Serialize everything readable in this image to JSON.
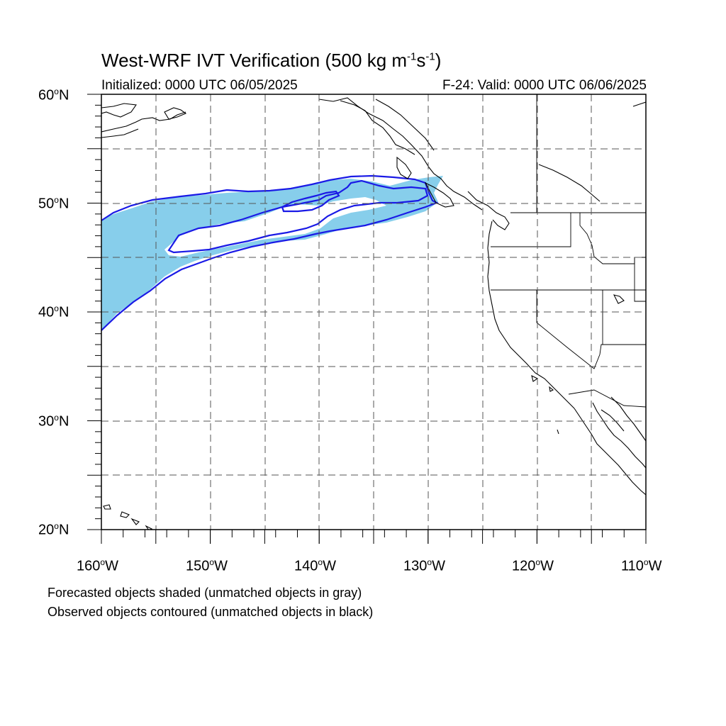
{
  "title": {
    "main": "West-WRF IVT Verification (500 kg m",
    "sup1": "-1",
    "mid": "s",
    "sup2": "-1",
    "end": ")"
  },
  "subtitle_left": "Initialized: 0000 UTC 06/05/2025",
  "subtitle_right": "F-24: Valid: 0000 UTC 06/06/2025",
  "lat_labels": [
    {
      "num": "60",
      "sup": "o",
      "hem": "N"
    },
    {
      "num": "50",
      "sup": "o",
      "hem": "N"
    },
    {
      "num": "40",
      "sup": "o",
      "hem": "N"
    },
    {
      "num": "30",
      "sup": "o",
      "hem": "N"
    },
    {
      "num": "20",
      "sup": "o",
      "hem": "N"
    }
  ],
  "lon_labels": [
    {
      "num": "160",
      "sup": "o",
      "hem": "W"
    },
    {
      "num": "150",
      "sup": "o",
      "hem": "W"
    },
    {
      "num": "140",
      "sup": "o",
      "hem": "W"
    },
    {
      "num": "130",
      "sup": "o",
      "hem": "W"
    },
    {
      "num": "120",
      "sup": "o",
      "hem": "W"
    },
    {
      "num": "110",
      "sup": "o",
      "hem": "W"
    }
  ],
  "notes": [
    "Forecasted objects shaded (unmatched objects in gray)",
    "Observed objects contoured (unmatched objects in black)"
  ],
  "map": {
    "lon_range": [
      -160,
      -110
    ],
    "lat_range": [
      20,
      60
    ],
    "grid_spacing_deg": 5,
    "forecast_fill_color": "#87ceeb",
    "observed_contour_color": "#1a1ae6",
    "grid_line_style": "dashed"
  }
}
